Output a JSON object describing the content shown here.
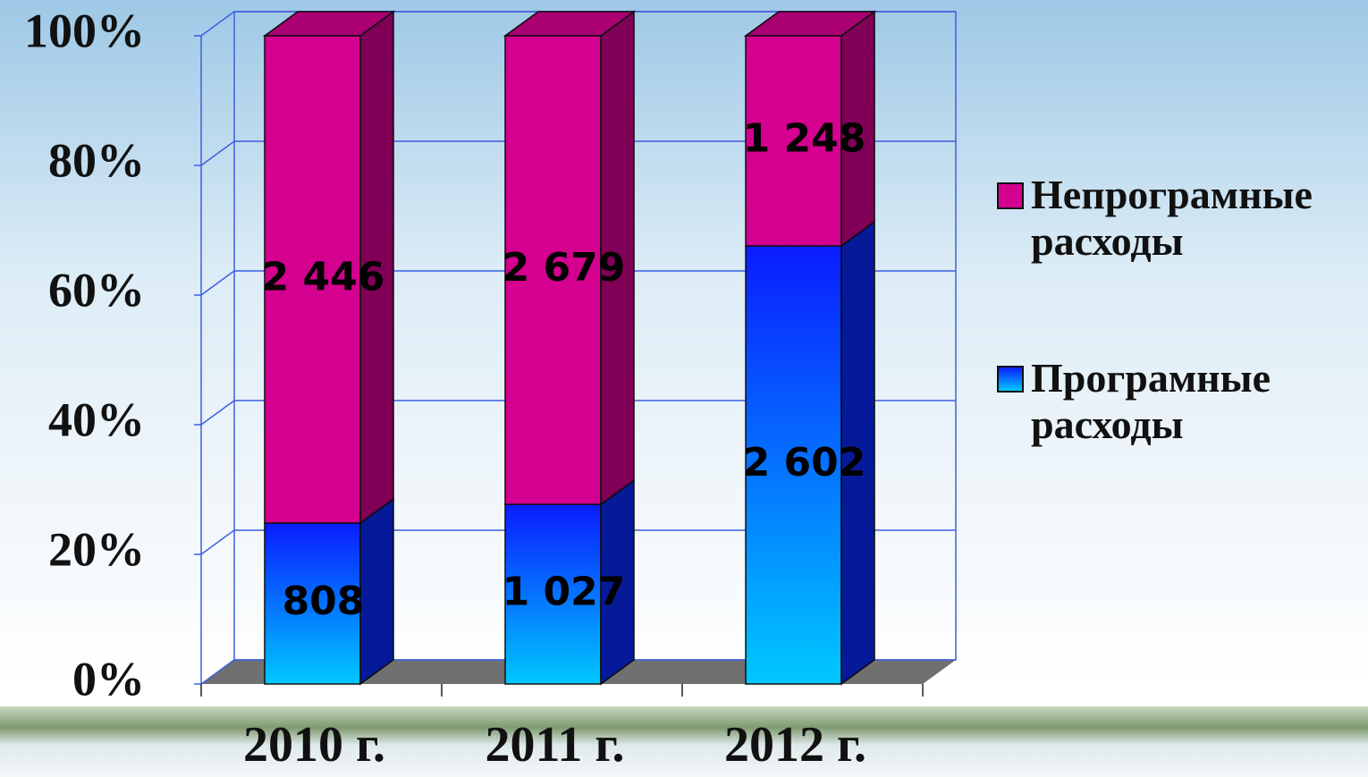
{
  "chart_data": {
    "type": "bar",
    "stacked": "percent",
    "categories": [
      "2010 г.",
      "2011 г.",
      "2012 г."
    ],
    "series": [
      {
        "name": "Програмные расходы",
        "color": "#0a2cff",
        "values": [
          808,
          1027,
          2602
        ],
        "value_labels": [
          "808",
          "1 027",
          "2 602"
        ]
      },
      {
        "name": "Непрограмные расходы",
        "color": "#d4008f",
        "values": [
          2446,
          2679,
          1248
        ],
        "value_labels": [
          "2 446",
          "2 679",
          "1 248"
        ]
      }
    ],
    "ylim": [
      0,
      100
    ],
    "yticks": [
      {
        "value": 0,
        "label": "0%"
      },
      {
        "value": 20,
        "label": "20%"
      },
      {
        "value": 40,
        "label": "40%"
      },
      {
        "value": 60,
        "label": "60%"
      },
      {
        "value": 80,
        "label": "80%"
      },
      {
        "value": 100,
        "label": "100%"
      }
    ],
    "grid": true
  }
}
